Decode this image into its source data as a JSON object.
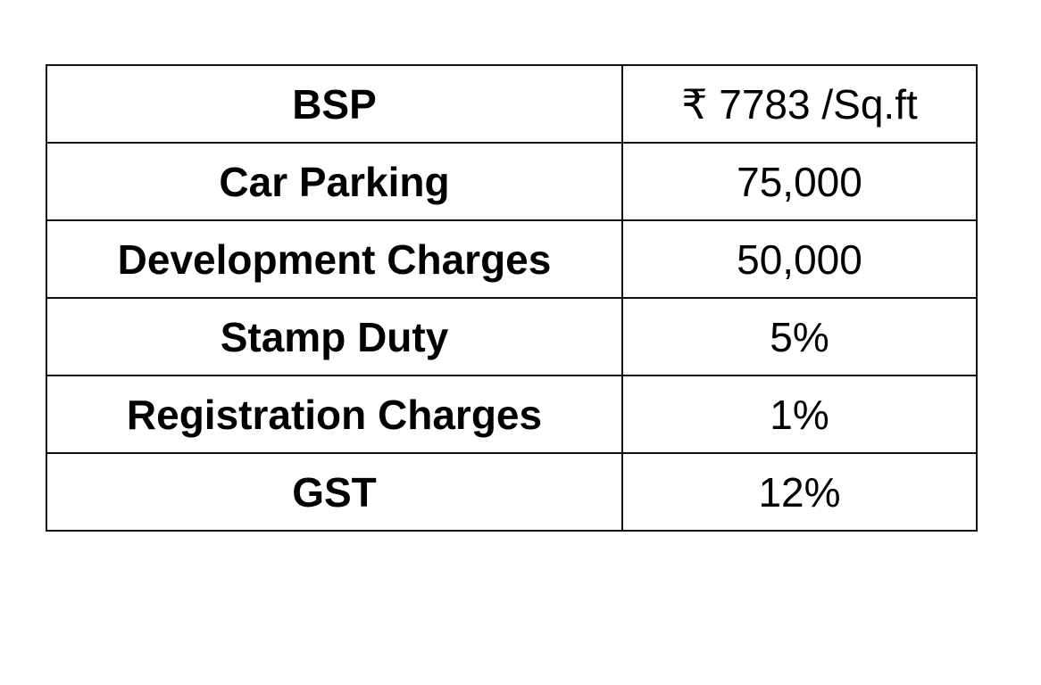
{
  "table": {
    "rows": [
      {
        "label": "BSP",
        "value": "₹ 7783 /Sq.ft"
      },
      {
        "label": "Car Parking",
        "value": "75,000"
      },
      {
        "label": "Development Charges",
        "value": "50,000"
      },
      {
        "label": "Stamp Duty",
        "value": "5%"
      },
      {
        "label": "Registration Charges",
        "value": "1%"
      },
      {
        "label": "GST",
        "value": "12%"
      }
    ]
  }
}
